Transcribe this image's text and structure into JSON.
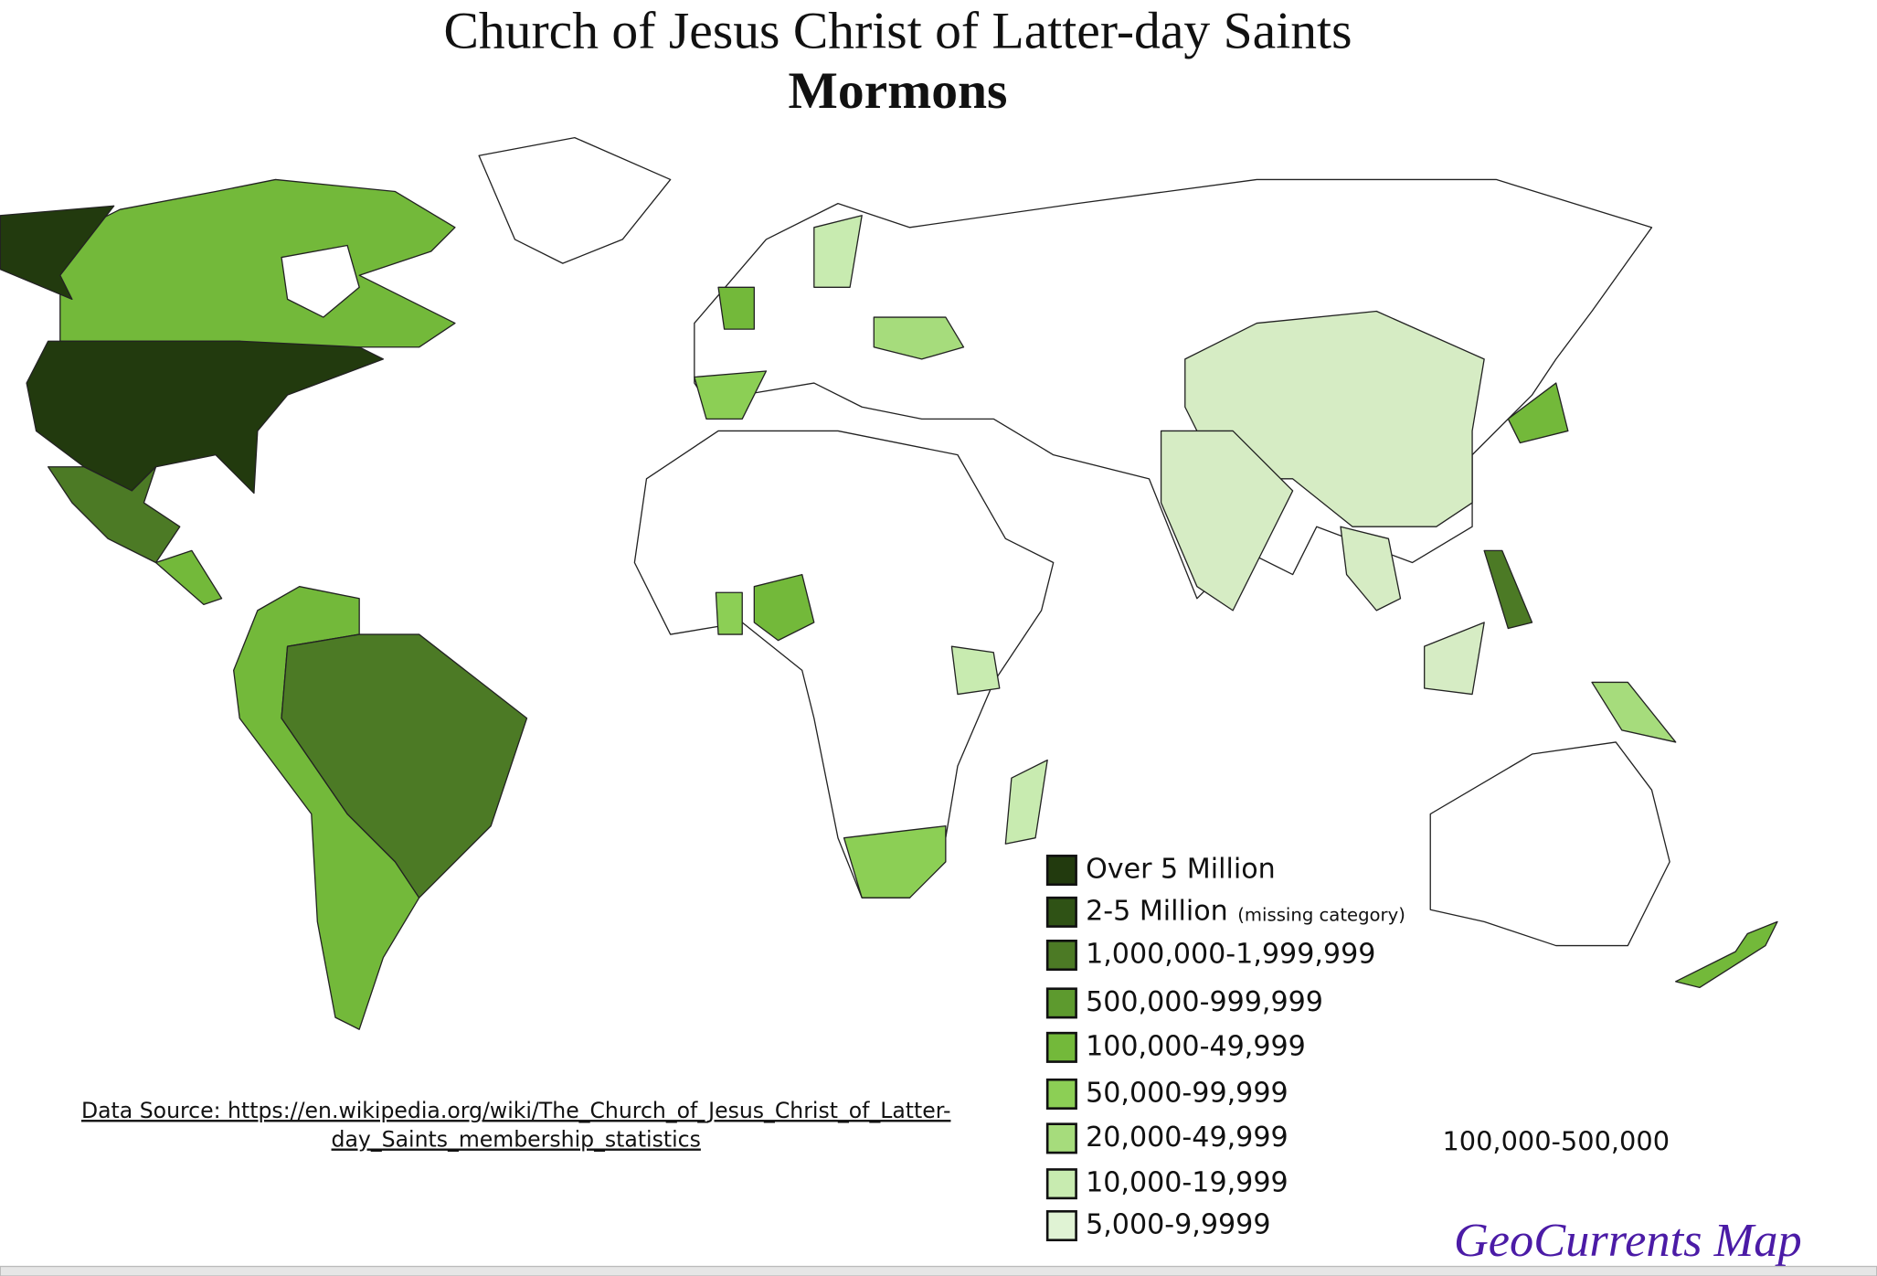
{
  "header": {
    "title": "Church of Jesus Christ of Latter-day Saints",
    "subtitle": "Mormons"
  },
  "legend": {
    "items": [
      {
        "label": "Over 5 Million",
        "color": "#223a0e"
      },
      {
        "label": "2-5 Million",
        "note": "(missing category)",
        "color": "#2f5215"
      },
      {
        "label": "1,000,000-1,999,999",
        "color": "#4c7a25"
      },
      {
        "label": "500,000-999,999",
        "color": "#5d9a2e"
      },
      {
        "label": "100,000-49,999",
        "color": "#73b93a"
      },
      {
        "label": "50,000-99,999",
        "color": "#8ccf55"
      },
      {
        "label": "20,000-49,999",
        "color": "#a6dc7c"
      },
      {
        "label": "10,000-19,999",
        "color": "#c8ebb0"
      },
      {
        "label": "5,000-9,9999",
        "color": "#e0f3d4"
      }
    ]
  },
  "source": {
    "lines": [
      "Data Source: https://en.wikipedia.org/wiki/The_Church_of_Jesus_Christ_of_Latter-",
      "day_Saints_membership_statistics"
    ]
  },
  "note": "100,000-500,000",
  "credit": "GeoCurrents Map"
}
